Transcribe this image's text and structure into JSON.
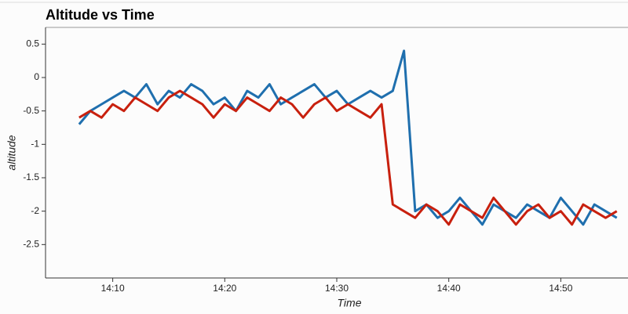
{
  "chart_data": {
    "type": "line",
    "title": "Altitude vs Time",
    "x_label": "Time",
    "y_label": "altitude",
    "x": [
      "14:07",
      "14:08",
      "14:09",
      "14:10",
      "14:11",
      "14:12",
      "14:13",
      "14:14",
      "14:15",
      "14:16",
      "14:17",
      "14:18",
      "14:19",
      "14:20",
      "14:21",
      "14:22",
      "14:23",
      "14:24",
      "14:25",
      "14:26",
      "14:27",
      "14:28",
      "14:29",
      "14:30",
      "14:31",
      "14:32",
      "14:33",
      "14:34",
      "14:35",
      "14:36",
      "14:37",
      "14:38",
      "14:39",
      "14:40",
      "14:41",
      "14:42",
      "14:43",
      "14:44",
      "14:45",
      "14:46",
      "14:47",
      "14:48",
      "14:49",
      "14:50",
      "14:51",
      "14:52",
      "14:53",
      "14:54",
      "14:55"
    ],
    "series": [
      {
        "color": "#1f6fae",
        "values": [
          -0.7,
          -0.5,
          -0.4,
          -0.3,
          -0.2,
          -0.3,
          -0.1,
          -0.4,
          -0.2,
          -0.3,
          -0.1,
          -0.2,
          -0.4,
          -0.3,
          -0.5,
          -0.2,
          -0.3,
          -0.1,
          -0.4,
          -0.3,
          -0.2,
          -0.1,
          -0.3,
          -0.2,
          -0.4,
          -0.3,
          -0.2,
          -0.3,
          -0.2,
          0.4,
          -2.0,
          -1.9,
          -2.1,
          -2.0,
          -1.8,
          -2.0,
          -2.2,
          -1.9,
          -2.0,
          -2.1,
          -1.9,
          -2.0,
          -2.1,
          -1.8,
          -2.0,
          -2.2,
          -1.9,
          -2.0,
          -2.1
        ]
      },
      {
        "color": "#c8200e",
        "values": [
          -0.6,
          -0.5,
          -0.6,
          -0.4,
          -0.5,
          -0.3,
          -0.4,
          -0.5,
          -0.3,
          -0.2,
          -0.3,
          -0.4,
          -0.6,
          -0.4,
          -0.5,
          -0.3,
          -0.4,
          -0.5,
          -0.3,
          -0.4,
          -0.6,
          -0.4,
          -0.3,
          -0.5,
          -0.4,
          -0.5,
          -0.6,
          -0.4,
          -1.9,
          -2.0,
          -2.1,
          -1.9,
          -2.0,
          -2.2,
          -1.9,
          -2.0,
          -2.1,
          -1.8,
          -2.0,
          -2.2,
          -2.0,
          -1.9,
          -2.1,
          -2.0,
          -2.2,
          -1.9,
          -2.0,
          -2.1,
          -2.0
        ]
      }
    ],
    "xlim": [
      "14:04",
      "14:56"
    ],
    "xticks": [
      "14:10",
      "14:20",
      "14:30",
      "14:40",
      "14:50"
    ],
    "ylim": [
      -3,
      0.75
    ],
    "yticks": [
      0.5,
      0,
      -0.5,
      -1,
      -1.5,
      -2,
      -2.5
    ]
  }
}
